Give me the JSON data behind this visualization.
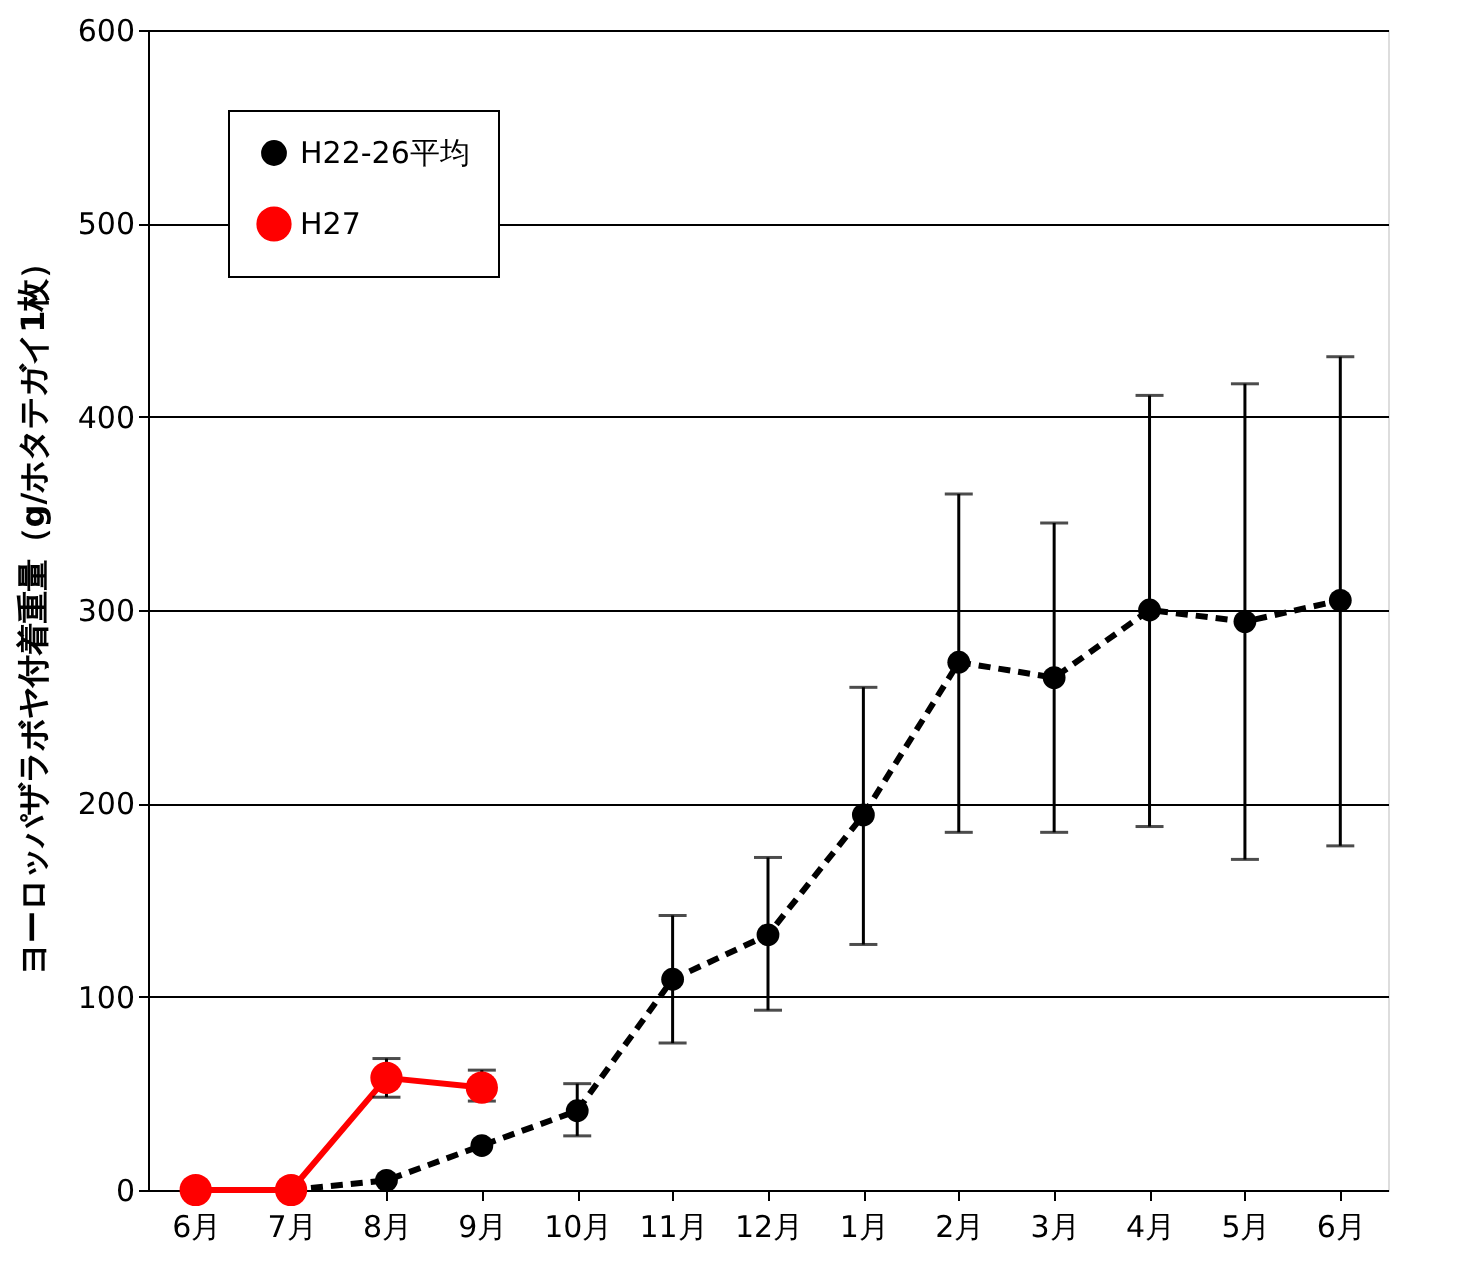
{
  "chart_data": {
    "type": "line",
    "ylabel": "ヨーロッパザラボヤ付着重量（g/ホタテガイ1枚）",
    "categories": [
      "6月",
      "7月",
      "8月",
      "9月",
      "10月",
      "11月",
      "12月",
      "1月",
      "2月",
      "3月",
      "4月",
      "5月",
      "6月"
    ],
    "ylim": [
      0,
      600
    ],
    "yticks": [
      0,
      100,
      200,
      300,
      400,
      500,
      600
    ],
    "grid": "y",
    "legend": "top left",
    "marker": "circle",
    "series": [
      {
        "name": "H22-26平均",
        "color": "#000000",
        "line_style": "dashed",
        "values": [
          null,
          0,
          5,
          23,
          41,
          109,
          132,
          194,
          273,
          265,
          300,
          294,
          305
        ],
        "errors": [
          null,
          null,
          null,
          null,
          [
            28,
            55
          ],
          [
            76,
            142
          ],
          [
            93,
            172
          ],
          [
            127,
            260
          ],
          [
            185,
            360
          ],
          [
            185,
            345
          ],
          [
            188,
            411
          ],
          [
            171,
            417
          ],
          [
            178,
            431
          ]
        ]
      },
      {
        "name": "H27",
        "color": "#ff0000",
        "line_style": "solid",
        "values": [
          0,
          0,
          58,
          53,
          null,
          null,
          null,
          null,
          null,
          null,
          null,
          null,
          null
        ],
        "errors": [
          null,
          null,
          [
            48,
            68
          ],
          [
            46,
            62
          ],
          null,
          null,
          null,
          null,
          null,
          null,
          null,
          null,
          null
        ]
      }
    ]
  }
}
